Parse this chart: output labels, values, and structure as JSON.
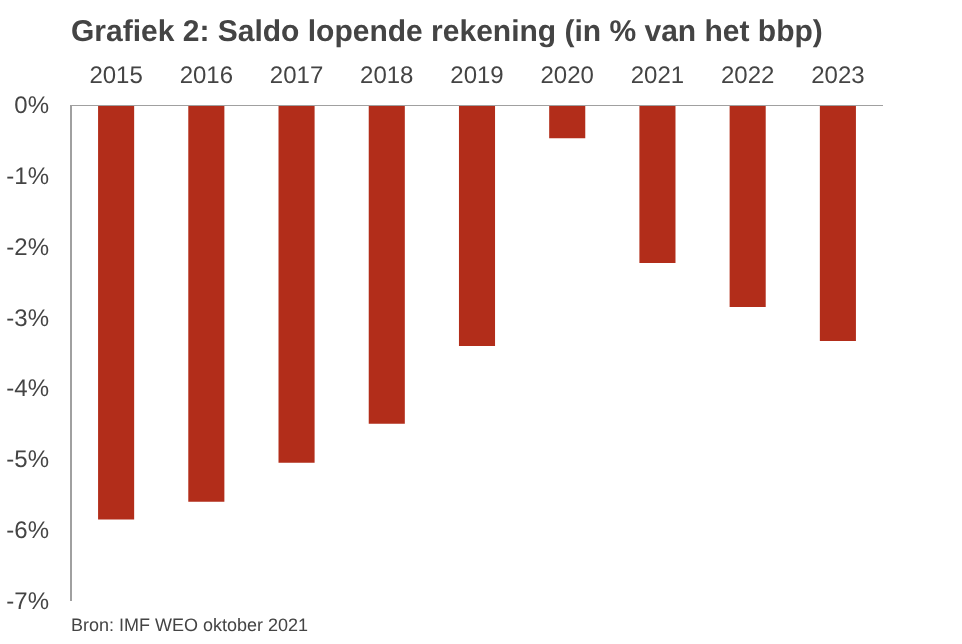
{
  "chart_data": {
    "type": "bar",
    "title": "Grafiek 2: Saldo lopende rekening (in % van het bbp)",
    "categories": [
      "2015",
      "2016",
      "2017",
      "2018",
      "2019",
      "2020",
      "2021",
      "2022",
      "2023"
    ],
    "values": [
      -5.85,
      -5.6,
      -5.05,
      -4.5,
      -3.4,
      -0.47,
      -2.23,
      -2.85,
      -3.33
    ],
    "color": "#b22d1a",
    "ylim": [
      -7,
      0
    ],
    "yticks": [
      {
        "value": 0,
        "label": "0%"
      },
      {
        "value": -1,
        "label": "-1%"
      },
      {
        "value": -2,
        "label": "-2%"
      },
      {
        "value": -3,
        "label": "-3%"
      },
      {
        "value": -4,
        "label": "-4%"
      },
      {
        "value": -5,
        "label": "-5%"
      },
      {
        "value": -6,
        "label": "-6%"
      },
      {
        "value": -7,
        "label": "-7%"
      }
    ],
    "grid": false,
    "annotations": [
      "Bron: IMF WEO oktober 2021"
    ]
  }
}
